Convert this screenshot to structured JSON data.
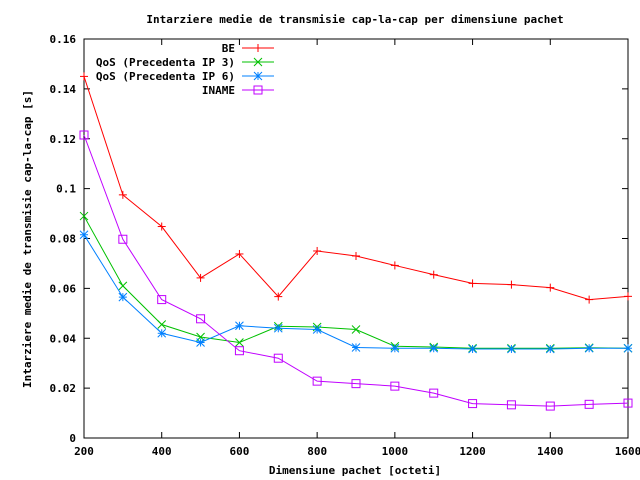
{
  "chart_data": {
    "type": "line",
    "title": "Intarziere medie de transmisie cap-la-cap per dimensiune pachet",
    "xlabel": "Dimensiune pachet [octeti]",
    "ylabel": "Intarziere medie de transmisie cap-la-cap [s]",
    "xlim": [
      200,
      1600
    ],
    "ylim": [
      0,
      0.16
    ],
    "x_ticks": [
      "200",
      "400",
      "600",
      "800",
      "1000",
      "1200",
      "1400",
      "1600"
    ],
    "x_tick_values": [
      200,
      400,
      600,
      800,
      1000,
      1200,
      1400,
      1600
    ],
    "y_ticks": [
      "0",
      "0.02",
      "0.04",
      "0.06",
      "0.08",
      "0.1",
      "0.12",
      "0.14",
      "0.16"
    ],
    "y_tick_values": [
      0,
      0.02,
      0.04,
      0.06,
      0.08,
      0.1,
      0.12,
      0.14,
      0.16
    ],
    "grid": false,
    "legend_position": "top-right",
    "x": [
      200,
      300,
      400,
      500,
      600,
      700,
      800,
      900,
      1000,
      1100,
      1200,
      1300,
      1400,
      1500,
      1600
    ],
    "series": [
      {
        "name": "BE",
        "color": "#ff0000",
        "marker": "plus",
        "values": [
          0.145,
          0.0975,
          0.0848,
          0.0642,
          0.0738,
          0.0567,
          0.075,
          0.073,
          0.0692,
          0.0655,
          0.062,
          0.0615,
          0.0603,
          0.0555,
          0.0568
        ]
      },
      {
        "name": "QoS (Precedenta IP 3)",
        "color": "#00c000",
        "marker": "cross",
        "values": [
          0.089,
          0.061,
          0.0455,
          0.0405,
          0.0383,
          0.0448,
          0.0445,
          0.0435,
          0.0368,
          0.0365,
          0.036,
          0.036,
          0.036,
          0.0362,
          0.036
        ]
      },
      {
        "name": "QoS (Precedenta IP 6)",
        "color": "#0080ff",
        "marker": "star",
        "values": [
          0.0815,
          0.0565,
          0.042,
          0.0383,
          0.045,
          0.044,
          0.0435,
          0.0363,
          0.036,
          0.036,
          0.0357,
          0.0357,
          0.0357,
          0.036,
          0.036
        ]
      },
      {
        "name": "INAME",
        "color": "#c000ff",
        "marker": "square",
        "values": [
          0.1215,
          0.0797,
          0.0555,
          0.0478,
          0.035,
          0.032,
          0.0228,
          0.0218,
          0.0208,
          0.018,
          0.0138,
          0.0133,
          0.0128,
          0.0135,
          0.014
        ]
      }
    ]
  }
}
